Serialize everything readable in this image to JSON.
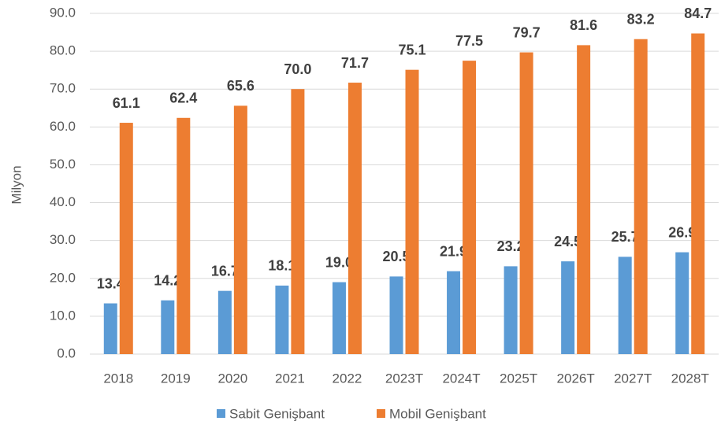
{
  "chart_data": {
    "type": "bar",
    "y_label": "Milyon",
    "categories": [
      "2018",
      "2019",
      "2020",
      "2021",
      "2022",
      "2023T",
      "2024T",
      "2025T",
      "2026T",
      "2027T",
      "2028T"
    ],
    "series": [
      {
        "name": "Sabit Genişbant",
        "color": "#5b9bd5",
        "values": [
          13.4,
          14.2,
          16.7,
          18.1,
          19.0,
          20.5,
          21.9,
          23.2,
          24.5,
          25.7,
          26.9
        ],
        "value_labels": [
          "13.4",
          "14.2",
          "16.7",
          "18.1",
          "19.0",
          "20.5",
          "21.9",
          "23.2",
          "24.5",
          "25.7",
          "26.9"
        ]
      },
      {
        "name": "Mobil Genişbant",
        "color": "#ed7d31",
        "values": [
          61.1,
          62.4,
          65.6,
          70.0,
          71.7,
          75.1,
          77.5,
          79.7,
          81.6,
          83.2,
          84.7
        ],
        "value_labels": [
          "61.1",
          "62.4",
          "65.6",
          "70.0",
          "71.7",
          "75.1",
          "77.5",
          "79.7",
          "81.6",
          "83.2",
          "84.7"
        ]
      }
    ],
    "ylim": [
      0,
      90
    ],
    "yticks": [
      {
        "value": 0,
        "label": "0.0"
      },
      {
        "value": 10,
        "label": "10.0"
      },
      {
        "value": 20,
        "label": "20.0"
      },
      {
        "value": 30,
        "label": "30.0"
      },
      {
        "value": 40,
        "label": "40.0"
      },
      {
        "value": 50,
        "label": "50.0"
      },
      {
        "value": 60,
        "label": "60.0"
      },
      {
        "value": 70,
        "label": "70.0"
      },
      {
        "value": 80,
        "label": "80.0"
      },
      {
        "value": 90,
        "label": "90.0"
      }
    ],
    "grid": true,
    "legend": "bottom"
  }
}
